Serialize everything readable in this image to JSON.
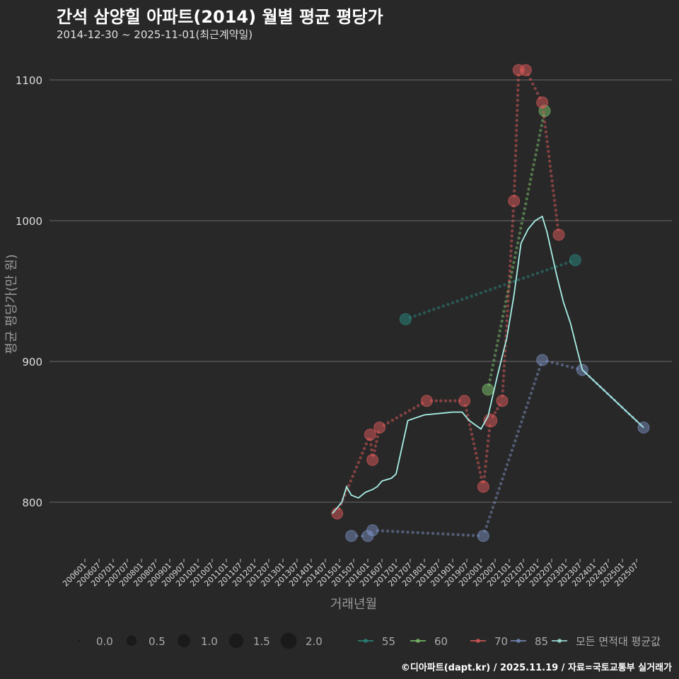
{
  "chart_data": {
    "type": "scatter",
    "title": "간석 삼양힐 아파트(2014) 월별 평균 평당가",
    "subtitle": "2014-12-30 ~ 2025-11-01(최근계약일)",
    "xlabel": "거래년월",
    "ylabel": "평균 평당가(만 원)",
    "caption": "©디아파트(dapt.kr) / 2025.11.19 / 자료=국토교통부 실거래가",
    "ylim": [
      765,
      1115
    ],
    "yticks": [
      800,
      900,
      1000,
      1100
    ],
    "grid": true,
    "x_tick_labels": [
      "200601",
      "200607",
      "200701",
      "200707",
      "200801",
      "200807",
      "200901",
      "200907",
      "201001",
      "201007",
      "201101",
      "201107",
      "201201",
      "201207",
      "201301",
      "201307",
      "201401",
      "201407",
      "201501",
      "201507",
      "201601",
      "201607",
      "201701",
      "201707",
      "201801",
      "201807",
      "201901",
      "201907",
      "202001",
      "202007",
      "202101",
      "202107",
      "202201",
      "202207",
      "202301",
      "202307",
      "202401",
      "202407",
      "202501",
      "202507"
    ],
    "size_legend": {
      "values": [
        0.0,
        0.5,
        1.0,
        1.5,
        2.0
      ],
      "labels": [
        "0.0",
        "0.5",
        "1.0",
        "1.5",
        "2.0"
      ]
    },
    "legend_position": "bottom",
    "series": [
      {
        "name": "55",
        "color": "#2a8a80",
        "points": [
          [
            "2017-05",
            930,
            1
          ],
          [
            "2023-05",
            972,
            1
          ]
        ]
      },
      {
        "name": "60",
        "color": "#7ec46e",
        "points": [
          [
            "2020-04",
            880,
            1
          ],
          [
            "2022-04",
            1078,
            1
          ]
        ]
      },
      {
        "name": "70",
        "color": "#e05a5a",
        "points": [
          [
            "2014-12",
            792,
            1
          ],
          [
            "2016-02",
            848,
            1
          ],
          [
            "2016-03",
            830,
            1
          ],
          [
            "2016-06",
            853,
            1
          ],
          [
            "2018-02",
            872,
            1
          ],
          [
            "2019-06",
            872,
            1
          ],
          [
            "2020-02",
            811,
            1
          ],
          [
            "2020-05",
            858,
            1.5
          ],
          [
            "2020-10",
            872,
            1
          ],
          [
            "2021-03",
            1014,
            1
          ],
          [
            "2021-05",
            1107,
            1
          ],
          [
            "2021-08",
            1107,
            1
          ],
          [
            "2022-03",
            1084,
            1
          ],
          [
            "2022-10",
            990,
            1
          ]
        ]
      },
      {
        "name": "85",
        "color": "#7a90c0",
        "points": [
          [
            "2015-06",
            776,
            1
          ],
          [
            "2016-01",
            776,
            1
          ],
          [
            "2016-03",
            780,
            1
          ],
          [
            "2020-02",
            776,
            1
          ],
          [
            "2022-03",
            901,
            1
          ],
          [
            "2023-08",
            894,
            1
          ],
          [
            "2025-10",
            853,
            1
          ]
        ]
      }
    ],
    "mean_series": {
      "name": "모든 면적대 평균값",
      "color": "#a8f0e8",
      "points": [
        [
          "2014-10",
          792
        ],
        [
          "2015-02",
          800
        ],
        [
          "2015-04",
          811
        ],
        [
          "2015-06",
          805
        ],
        [
          "2015-09",
          803
        ],
        [
          "2015-12",
          807
        ],
        [
          "2016-03",
          809
        ],
        [
          "2016-05",
          811
        ],
        [
          "2016-07",
          815
        ],
        [
          "2016-11",
          817
        ],
        [
          "2017-01",
          820
        ],
        [
          "2017-06",
          858
        ],
        [
          "2018-01",
          862
        ],
        [
          "2019-01",
          864
        ],
        [
          "2019-05",
          864
        ],
        [
          "2019-08",
          858
        ],
        [
          "2020-01",
          852
        ],
        [
          "2020-04",
          861
        ],
        [
          "2020-08",
          890
        ],
        [
          "2020-12",
          917
        ],
        [
          "2021-03",
          947
        ],
        [
          "2021-06",
          984
        ],
        [
          "2021-09",
          994
        ],
        [
          "2021-12",
          1000
        ],
        [
          "2022-03",
          1003
        ],
        [
          "2022-05",
          992
        ],
        [
          "2022-09",
          962
        ],
        [
          "2022-12",
          942
        ],
        [
          "2023-03",
          927
        ],
        [
          "2023-06",
          907
        ],
        [
          "2023-08",
          894
        ],
        [
          "2025-10",
          853
        ]
      ]
    }
  }
}
